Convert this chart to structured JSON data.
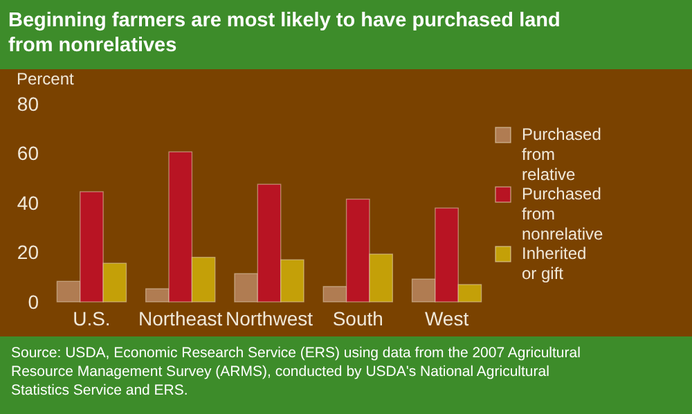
{
  "chart_data": {
    "type": "bar",
    "title": "Beginning farmers are most likely to have purchased land from nonrelatives",
    "ylabel": "Percent",
    "categories": [
      "U.S.",
      "Northeast",
      "Northwest",
      "South",
      "West"
    ],
    "series": [
      {
        "name": "Purchased from relative",
        "color": "#b07c52",
        "values": [
          8.3,
          5.3,
          11.4,
          6.2,
          9.2
        ]
      },
      {
        "name": "Purchased from nonrelative",
        "color": "#b81423",
        "values": [
          44.5,
          60.6,
          47.5,
          41.5,
          37.9
        ]
      },
      {
        "name": "Inherited or gift",
        "color": "#c4a008",
        "values": [
          15.6,
          18,
          17,
          19.3,
          7
        ]
      }
    ],
    "ylim": [
      0,
      80
    ],
    "yticks": [
      0,
      20,
      40,
      60,
      80
    ],
    "grid": false,
    "legend": "right",
    "annotations": [
      "Source: USDA, Economic Research Service (ERS) using data from the 2007 Agricultural Resource Management Survey (ARMS), conducted by USDA's National Agricultural Statistics Service and ERS."
    ]
  }
}
